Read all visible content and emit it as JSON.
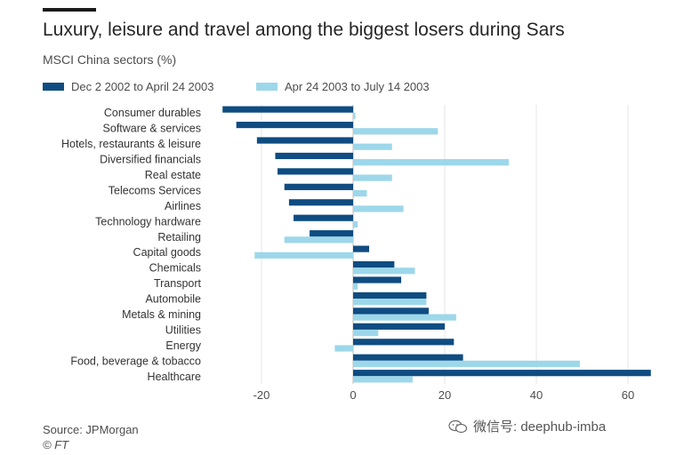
{
  "header": {
    "title": "Luxury, leisure and travel among the biggest losers during Sars",
    "subtitle": "MSCI China sectors (%)"
  },
  "legend": [
    {
      "label": "Dec 2 2002 to April 24 2003",
      "color": "#0f4c81"
    },
    {
      "label": "Apr 24 2003 to July 14 2003",
      "color": "#9dd7ea"
    }
  ],
  "footer": {
    "source": "Source: JPMorgan",
    "credit": "© FT",
    "watermark": "微信号: deephub-imba"
  },
  "chart_data": {
    "type": "bar",
    "orientation": "horizontal",
    "categories": [
      "Consumer durables",
      "Software & services",
      "Hotels, restaurants & leisure",
      "Diversified financials",
      "Real estate",
      "Telecoms Services",
      "Airlines",
      "Technology hardware",
      "Retailing",
      "Capital goods",
      "Chemicals",
      "Transport",
      "Automobile",
      "Metals & mining",
      "Utilities",
      "Energy",
      "Food, beverage & tobacco",
      "Healthcare"
    ],
    "series": [
      {
        "name": "Dec 2 2002 to April 24 2003",
        "color": "#0f4c81",
        "values": [
          -28.5,
          -25.5,
          -21,
          -17,
          -16.5,
          -15,
          -14,
          -13,
          -9.5,
          3.5,
          9,
          10.5,
          16,
          16.5,
          20,
          22,
          24,
          65
        ]
      },
      {
        "name": "Apr 24 2003 to July 14 2003",
        "color": "#9dd7ea",
        "values": [
          0.5,
          18.5,
          8.5,
          34,
          8.5,
          3,
          11,
          1,
          -15,
          -21.5,
          13.5,
          1,
          16,
          22.5,
          5.5,
          -4,
          49.5,
          13
        ]
      }
    ],
    "xlim": [
      -30,
      66
    ],
    "xticks": [
      -20,
      0,
      20,
      40,
      60
    ],
    "xtick_labels": [
      "-20",
      "0",
      "20",
      "40",
      "60"
    ],
    "grid": "vertical",
    "legend_position": "top-left"
  }
}
